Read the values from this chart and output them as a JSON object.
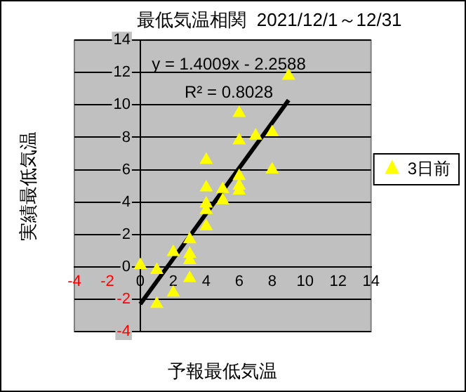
{
  "chart_data": {
    "type": "scatter",
    "title": "最低気温相関  2021/12/1～12/31",
    "xlabel": "予報最低気温",
    "ylabel": "実績最低気温",
    "annotations": [
      "y = 1.4009x - 2.2588",
      "R² = 0.8028"
    ],
    "series": [
      {
        "name": "3日前",
        "type": "scatter",
        "color": "#ffff00",
        "marker": "triangle",
        "x": [
          9,
          6,
          6,
          7,
          8,
          4,
          8,
          6,
          6,
          6,
          4,
          5,
          5,
          4,
          4,
          4,
          3,
          3,
          3,
          2,
          0,
          1,
          3,
          2,
          1
        ],
        "values": [
          11.8,
          9.5,
          7.8,
          8.1,
          8.3,
          6.6,
          6.0,
          5.6,
          5.0,
          4.7,
          4.9,
          4.8,
          4.1,
          3.9,
          3.5,
          2.5,
          1.7,
          0.8,
          0.4,
          0.9,
          0.1,
          -0.2,
          -0.7,
          -1.6,
          -2.3
        ]
      },
      {
        "type": "line",
        "color": "#000000",
        "marker": "none",
        "x": [
          0,
          9
        ],
        "values": [
          -2.3,
          10.3
        ]
      }
    ],
    "xlim": [
      -4,
      14
    ],
    "ylim": [
      -4,
      14
    ],
    "xticks": [
      -4,
      -2,
      0,
      2,
      4,
      6,
      8,
      10,
      12,
      14
    ],
    "yticks": [
      -4,
      -2,
      0,
      2,
      4,
      6,
      8,
      10,
      12,
      14
    ],
    "grid": "y",
    "legend": "right"
  }
}
